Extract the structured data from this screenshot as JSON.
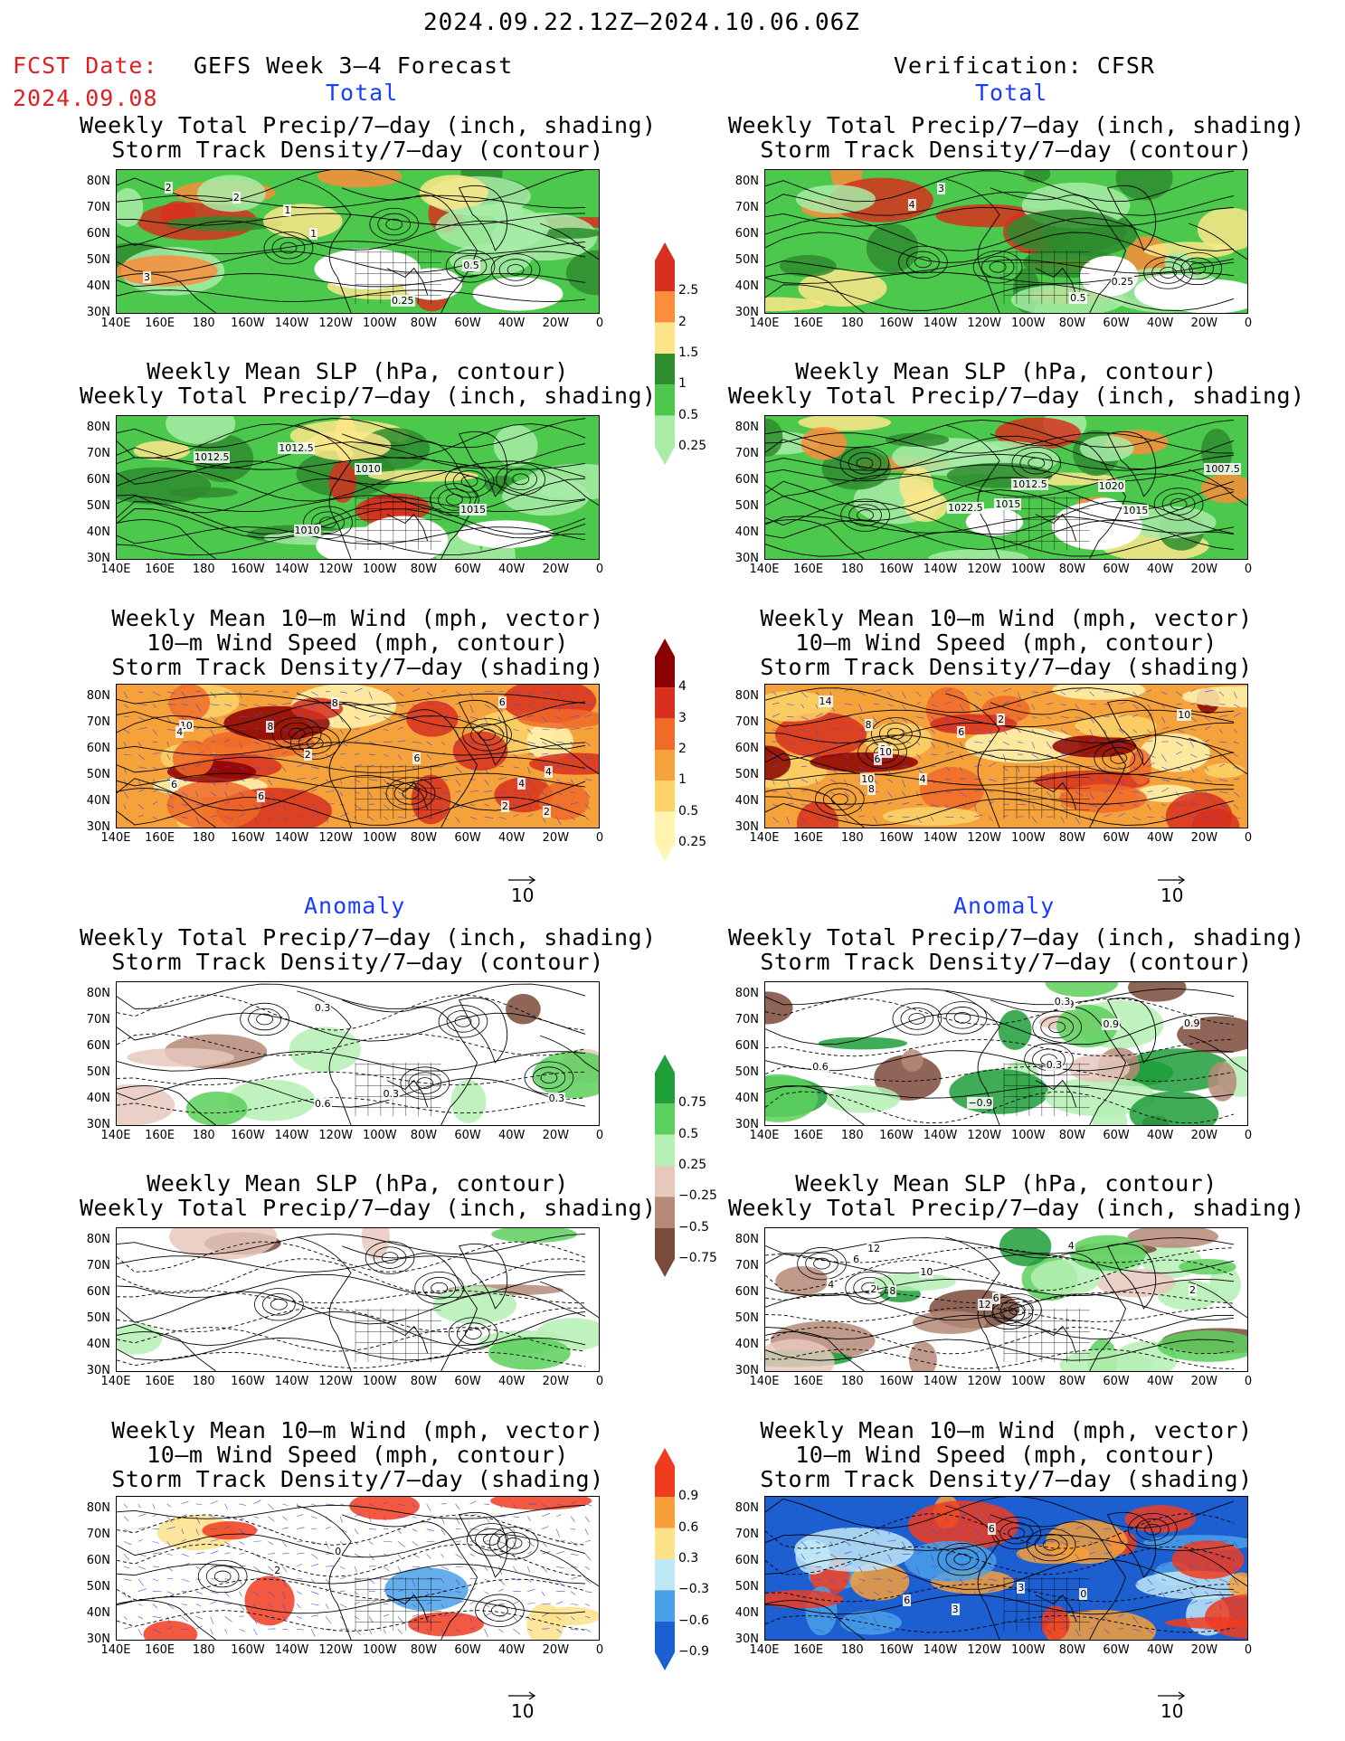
{
  "header": {
    "period": "2024.09.22.12Z–2024.10.06.06Z",
    "fcst_label": "FCST Date:",
    "fcst_date": "2024.09.08",
    "left_title": "GEFS Week 3–4 Forecast",
    "right_title": "Verification: CFSR"
  },
  "sections": {
    "total": "Total",
    "anomaly": "Anomaly"
  },
  "panel_titles": {
    "precip_storm": [
      "Weekly Total Precip/7–day (inch, shading)",
      "Storm Track Density/7–day (contour)"
    ],
    "slp_precip": [
      "Weekly Mean SLP (hPa, contour)",
      "Weekly Total Precip/7–day (inch, shading)"
    ],
    "wind_storm": [
      "Weekly Mean 10–m Wind (mph, vector)",
      "10–m Wind Speed (mph, contour)",
      "Storm Track Density/7–day (shading)"
    ]
  },
  "axes": {
    "lat_labels": [
      "80N",
      "70N",
      "60N",
      "50N",
      "40N",
      "30N"
    ],
    "lon_labels": [
      "140E",
      "160E",
      "180",
      "160W",
      "140W",
      "120W",
      "100W",
      "80W",
      "60W",
      "40W",
      "20W",
      "0"
    ]
  },
  "vector_ref": "10",
  "colorbars": {
    "precip_total": {
      "labels": [
        "2.5",
        "2",
        "1.5",
        "1",
        "0.5",
        "0.25"
      ],
      "colors": [
        "#d7301f",
        "#fc8d3c",
        "#fde68a",
        "#2e8b2e",
        "#4cc94c",
        "#a8eca8"
      ]
    },
    "storm_total": {
      "labels": [
        "4",
        "3",
        "2",
        "1",
        "0.5",
        "0.25"
      ],
      "colors": [
        "#8b0000",
        "#d7301f",
        "#f06a28",
        "#f6a23a",
        "#fcd36a",
        "#fff5b0"
      ]
    },
    "precip_anom": {
      "labels": [
        "0.75",
        "0.5",
        "0.25",
        "−0.25",
        "−0.5",
        "−0.75"
      ],
      "colors": [
        "#1f9e3a",
        "#5cd05c",
        "#b5f0b5",
        "#e6c8bc",
        "#b58a78",
        "#7a4a3a"
      ]
    },
    "storm_anom": {
      "labels": [
        "0.9",
        "0.6",
        "0.3",
        "−0.3",
        "−0.6",
        "−0.9"
      ],
      "colors": [
        "#f03c1e",
        "#f7a03a",
        "#fde28a",
        "#bfe8f7",
        "#4aa0e8",
        "#1c5fd0"
      ]
    }
  },
  "contour_labels": {
    "f_precip_total": [
      "1",
      "2",
      "3",
      "1",
      "2",
      "0.25",
      "0.5"
    ],
    "v_precip_total": [
      "3",
      "4",
      "0.5",
      "0.25"
    ],
    "f_slp_total": [
      "1010",
      "1010",
      "1012.5",
      "1012.5",
      "1015"
    ],
    "v_slp_total": [
      "1022.5",
      "1020",
      "1007.5",
      "1015",
      "1012.5",
      "1015"
    ],
    "f_wind_total": [
      "2",
      "4",
      "6",
      "6",
      "8",
      "2",
      "4",
      "10",
      "8",
      "2",
      "6",
      "4",
      "6"
    ],
    "v_wind_total": [
      "6",
      "8",
      "4",
      "6",
      "14",
      "10",
      "8",
      "10",
      "6",
      "10",
      "2"
    ],
    "f_precip_anom": [
      "0.3",
      "0.6",
      "0.3",
      "0.3"
    ],
    "v_precip_anom": [
      "−0.9",
      "0.9",
      "0.3",
      "0.9",
      "0.3",
      "0.6",
      "0.9"
    ],
    "f_slp_anom": [],
    "v_slp_anom": [
      "12",
      "4",
      "2",
      "4",
      "6",
      "12",
      "10",
      "6",
      "2",
      "8"
    ],
    "f_wind_anom": [
      "0",
      "2"
    ],
    "v_wind_anom": [
      "6",
      "3",
      "6",
      "3",
      "0"
    ]
  }
}
